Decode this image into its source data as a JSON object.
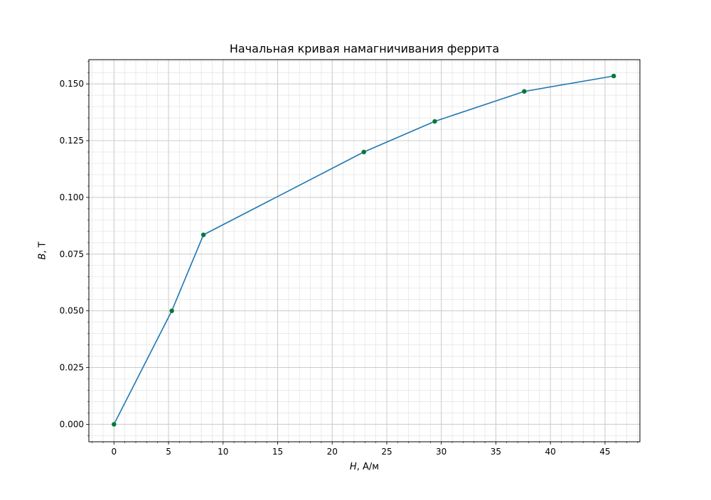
{
  "chart_data": {
    "type": "line",
    "title": "Начальная кривая намагничивания феррита",
    "xlabel_var": "H",
    "xlabel_unit": ", А/м",
    "ylabel_var": "B",
    "ylabel_unit": ", Т",
    "xlim": [
      -2.3,
      48.2
    ],
    "ylim": [
      -0.0077,
      0.1607
    ],
    "xticks": [
      0,
      5,
      10,
      15,
      20,
      25,
      30,
      35,
      40,
      45
    ],
    "xtick_labels": [
      "0",
      "5",
      "10",
      "15",
      "20",
      "25",
      "30",
      "35",
      "40",
      "45"
    ],
    "yticks": [
      0.0,
      0.025,
      0.05,
      0.075,
      0.1,
      0.125,
      0.15
    ],
    "ytick_labels": [
      "0.000",
      "0.025",
      "0.050",
      "0.075",
      "0.100",
      "0.125",
      "0.150"
    ],
    "x_minor_step": 1,
    "y_minor_step": 0.005,
    "grid": true,
    "series": [
      {
        "x": [
          0,
          5.3,
          8.2,
          22.9,
          29.4,
          37.6,
          45.8
        ],
        "y": [
          0.0,
          0.05,
          0.0835,
          0.12,
          0.1335,
          0.1467,
          0.1535
        ],
        "line_color": "#1f77b4",
        "marker_color": "#008000"
      }
    ]
  }
}
